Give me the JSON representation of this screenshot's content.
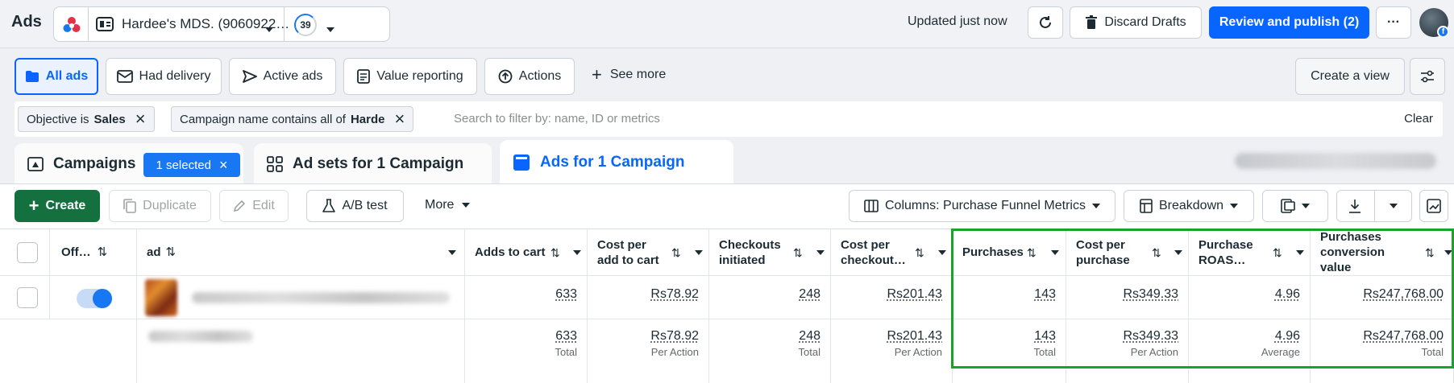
{
  "header": {
    "app_title": "Ads",
    "account_name": "Hardee's MDS. (9060922…",
    "notifications_count": "39",
    "updated_text": "Updated just now",
    "discard_label": "Discard Drafts",
    "publish_label": "Review and publish (2)",
    "more_label": "···"
  },
  "views": {
    "all_ads": "All ads",
    "had_delivery": "Had delivery",
    "active_ads": "Active ads",
    "value_reporting": "Value reporting",
    "actions": "Actions",
    "see_more": "See more",
    "create_view": "Create a view"
  },
  "filters": {
    "chip1_prefix": "Objective is",
    "chip1_value": "Sales",
    "chip2_prefix": "Campaign name contains all of",
    "chip2_value": "Harde",
    "search_placeholder": "Search to filter by: name, ID or metrics",
    "clear_label": "Clear"
  },
  "tabs": {
    "campaigns": "Campaigns",
    "selected_badge": "1 selected",
    "adsets": "Ad sets for 1 Campaign",
    "ads": "Ads for 1 Campaign"
  },
  "toolbar": {
    "create": "Create",
    "duplicate": "Duplicate",
    "edit": "Edit",
    "ab_test": "A/B test",
    "more": "More",
    "columns": "Columns: Purchase Funnel Metrics",
    "breakdown": "Breakdown"
  },
  "table": {
    "col_off": "Off…",
    "col_ad": "ad",
    "columns": [
      {
        "label": "Adds to cart",
        "row1": "633",
        "total": "633",
        "total_label": "Total"
      },
      {
        "label": "Cost per add to cart",
        "row1": "Rs78.92",
        "total": "Rs78.92",
        "total_label": "Per Action"
      },
      {
        "label": "Checkouts initiated",
        "row1": "248",
        "total": "248",
        "total_label": "Total"
      },
      {
        "label": "Cost per checkout…",
        "row1": "Rs201.43",
        "total": "Rs201.43",
        "total_label": "Per Action"
      },
      {
        "label": "Purchases",
        "row1": "143",
        "total": "143",
        "total_label": "Total"
      },
      {
        "label": "Cost per purchase",
        "row1": "Rs349.33",
        "total": "Rs349.33",
        "total_label": "Per Action"
      },
      {
        "label": "Purchase ROAS…",
        "row1": "4.96",
        "total": "4.96",
        "total_label": "Average"
      },
      {
        "label": "Purchases conversion value",
        "row1": "Rs247,768.00",
        "total": "Rs247,768.00",
        "total_label": "Total"
      }
    ]
  },
  "colors": {
    "primary_blue": "#0866ff",
    "create_green": "#14713f",
    "highlight_green": "#1aa32a",
    "selected_badge": "#1877f2",
    "toggle_on": "#1877f2"
  }
}
